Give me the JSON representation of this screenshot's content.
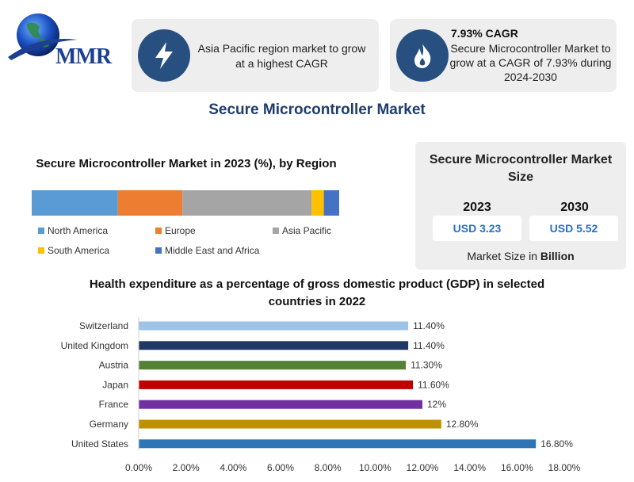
{
  "logo": {
    "text": "MMR"
  },
  "card_left": {
    "icon": "lightning-bolt-icon",
    "text": "Asia Pacific region market to grow at a highest CAGR"
  },
  "card_right": {
    "icon": "flame-icon",
    "title": "7.93% CAGR",
    "text": "Secure Microcontroller Market to grow at a CAGR of 7.93% during 2024-2030"
  },
  "main_title": "Secure Microcontroller Market",
  "market_size": {
    "title": "Secure Microcontroller Market Size",
    "year1": "2023",
    "value1": "USD 3.23",
    "year2": "2030",
    "value2": "USD 5.52",
    "note_prefix": "Market Size in",
    "note_unit": "Billion"
  },
  "chart_data": [
    {
      "type": "bar",
      "stacked": true,
      "orientation": "horizontal",
      "title": "Secure Microcontroller Market in 2023 (%), by Region",
      "series": [
        {
          "name": "North America",
          "values": [
            28
          ],
          "color": "#5b9bd5"
        },
        {
          "name": "Europe",
          "values": [
            21
          ],
          "color": "#ed7d31"
        },
        {
          "name": "Asia Pacific",
          "values": [
            42
          ],
          "color": "#a5a5a5"
        },
        {
          "name": "South America",
          "values": [
            4
          ],
          "color": "#ffc000"
        },
        {
          "name": "Middle East and Africa",
          "values": [
            5
          ],
          "color": "#4472c4"
        }
      ],
      "legend_placement": "bottom"
    },
    {
      "type": "bar",
      "orientation": "horizontal",
      "title": "Health expenditure as a percentage of gross domestic product (GDP) in selected countries in 2022",
      "categories": [
        "Switzerland",
        "United Kingdom",
        "Austria",
        "Japan",
        "France",
        "Germany",
        "United States"
      ],
      "values": [
        11.4,
        11.4,
        11.3,
        11.6,
        12.0,
        12.8,
        16.8
      ],
      "data_labels": [
        "11.40%",
        "11.40%",
        "11.30%",
        "11.60%",
        "12%",
        "12.80%",
        "16.80%"
      ],
      "colors": [
        "#9dc3e6",
        "#203864",
        "#548235",
        "#c00000",
        "#7030a0",
        "#bf9000",
        "#2e75b6"
      ],
      "xlim": [
        0,
        18
      ],
      "xticks": [
        "0.00%",
        "2.00%",
        "4.00%",
        "6.00%",
        "8.00%",
        "10.00%",
        "12.00%",
        "14.00%",
        "16.00%",
        "18.00%"
      ],
      "grid": false
    }
  ]
}
